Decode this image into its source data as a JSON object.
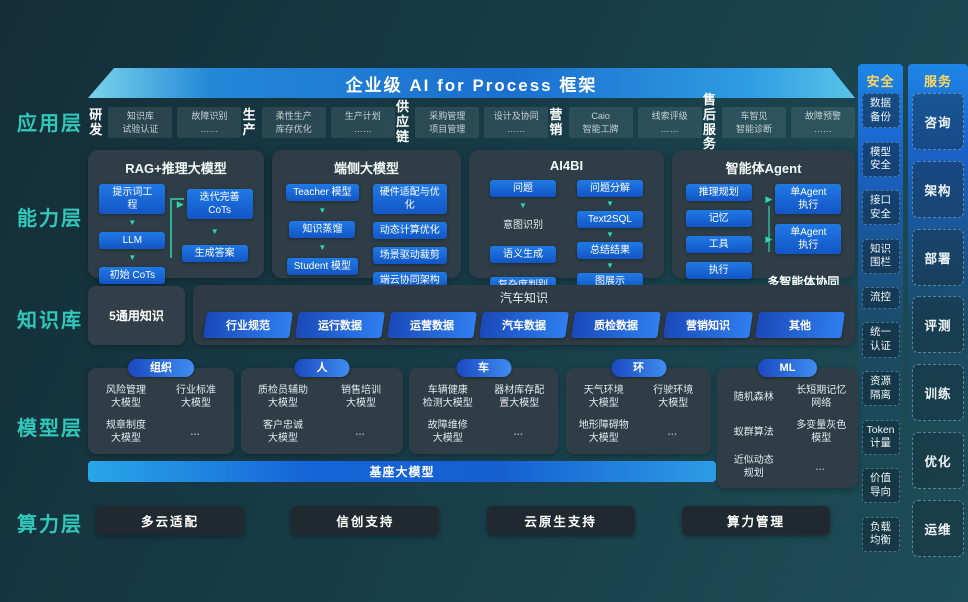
{
  "banner": {
    "title": "企业级 AI for Process 框架"
  },
  "layer_labels": [
    "应用层",
    "能力层",
    "知识库",
    "模型层",
    "算力层"
  ],
  "app": {
    "groups": [
      {
        "name": "研发",
        "chips": [
          "知识库\n试验认证",
          "故障识别\n……"
        ]
      },
      {
        "name": "生产",
        "chips": [
          "柔性生产\n库存优化",
          "生产计划\n……"
        ]
      },
      {
        "name": "供应\n链",
        "chips": [
          "采购管理\n项目管理",
          "设计及协同\n……"
        ]
      },
      {
        "name": "营销",
        "chips": [
          "Caio\n智能工牌",
          "线索评级\n……"
        ]
      },
      {
        "name": "售后\n服务",
        "chips": [
          "车智见\n智能诊断",
          "故障预警\n……"
        ]
      }
    ]
  },
  "capability": {
    "cards": [
      {
        "id": "rag",
        "title": "RAG+推理大模型",
        "left": [
          {
            "k": "box",
            "t": "提示词工\n程"
          },
          {
            "k": "arrow"
          },
          {
            "k": "box",
            "t": "LLM"
          },
          {
            "k": "arrow"
          },
          {
            "k": "box",
            "t": "初始 CoTs"
          }
        ],
        "right": [
          {
            "k": "abox",
            "t": "迭代完善\nCoTs"
          },
          {
            "k": "arrow"
          },
          {
            "k": "box",
            "t": "生成答案"
          }
        ]
      },
      {
        "id": "edge",
        "title": "端侧大模型",
        "left": [
          {
            "k": "box",
            "t": "Teacher 模型"
          },
          {
            "k": "arrow"
          },
          {
            "k": "box",
            "t": "知识蒸馏"
          },
          {
            "k": "arrow"
          },
          {
            "k": "box",
            "t": "Student 模型"
          }
        ],
        "right": [
          {
            "k": "box",
            "t": "硬件适配与优\n化"
          },
          {
            "k": "box",
            "t": "动态计算优化"
          },
          {
            "k": "box",
            "t": "场景驱动裁剪"
          },
          {
            "k": "box",
            "t": "端云协同架构"
          }
        ]
      },
      {
        "id": "ai4bi",
        "title": "AI4BI",
        "left": [
          {
            "k": "box",
            "t": "问题"
          },
          {
            "k": "arrow"
          },
          {
            "k": "text",
            "t": "意图识别"
          },
          {
            "k": "box",
            "t": "语义生成"
          },
          {
            "k": "box",
            "t": "复杂度判别"
          }
        ],
        "right": [
          {
            "k": "box",
            "t": "问题分解"
          },
          {
            "k": "arrow"
          },
          {
            "k": "box",
            "t": "Text2SQL"
          },
          {
            "k": "arrow"
          },
          {
            "k": "box",
            "t": "总结结果"
          },
          {
            "k": "arrow"
          },
          {
            "k": "box",
            "t": "图展示"
          }
        ]
      },
      {
        "id": "agent",
        "title": "智能体Agent",
        "left": [
          {
            "k": "box",
            "t": "推理规划"
          },
          {
            "k": "box",
            "t": "记忆"
          },
          {
            "k": "box",
            "t": "工具"
          },
          {
            "k": "box",
            "t": "执行"
          }
        ],
        "right": [
          {
            "k": "abox",
            "t": "单Agent\n执行"
          },
          {
            "k": "abox",
            "t": "单Agent\n执行"
          },
          {
            "k": "cap",
            "t": "多智能体协同"
          }
        ]
      }
    ]
  },
  "knowledge": {
    "general": "5通用知识",
    "auto_title": "汽车知识",
    "pills": [
      "行业规范",
      "运行数据",
      "运营数据",
      "汽车数据",
      "质检数据",
      "营销知识",
      "其他"
    ]
  },
  "model": {
    "cards": [
      {
        "pill": "组织",
        "items": [
          "风险管理\n大模型",
          "行业标准\n大模型",
          "规章制度\n大模型",
          "…"
        ]
      },
      {
        "pill": "人",
        "items": [
          "质检员辅助\n大模型",
          "销售培训\n大模型",
          "客户忠诚\n大模型",
          "…"
        ]
      },
      {
        "pill": "车",
        "items": [
          "车辆健康\n检测大模型",
          "器材库存配\n置大模型",
          "故障维修\n大模型",
          "…"
        ]
      },
      {
        "pill": "环",
        "items": [
          "天气环境\n大模型",
          "行驶环境\n大模型",
          "地形障碍物\n大模型",
          "…"
        ]
      },
      {
        "pill": "ML",
        "items": [
          "随机森林",
          "长短期记忆\n网络",
          "蚁群算法",
          "多变量灰色\n模型",
          "近似动态\n规划",
          "…"
        ]
      }
    ]
  },
  "foundation": {
    "label": "基座大模型"
  },
  "compute": {
    "items": [
      "多云适配",
      "信创支持",
      "云原生支持",
      "算力管理"
    ]
  },
  "security": {
    "title": "安全",
    "items": [
      "数据\n备份",
      "模型\n安全",
      "接口\n安全",
      "知识\n围栏",
      "流控",
      "统一\n认证",
      "资源\n隔离",
      "Token\n计量",
      "价值\n导向",
      "负载\n均衡"
    ]
  },
  "services": {
    "title": "服务",
    "items": [
      "咨询",
      "架构",
      "部署",
      "评测",
      "训练",
      "优化",
      "运维"
    ]
  }
}
